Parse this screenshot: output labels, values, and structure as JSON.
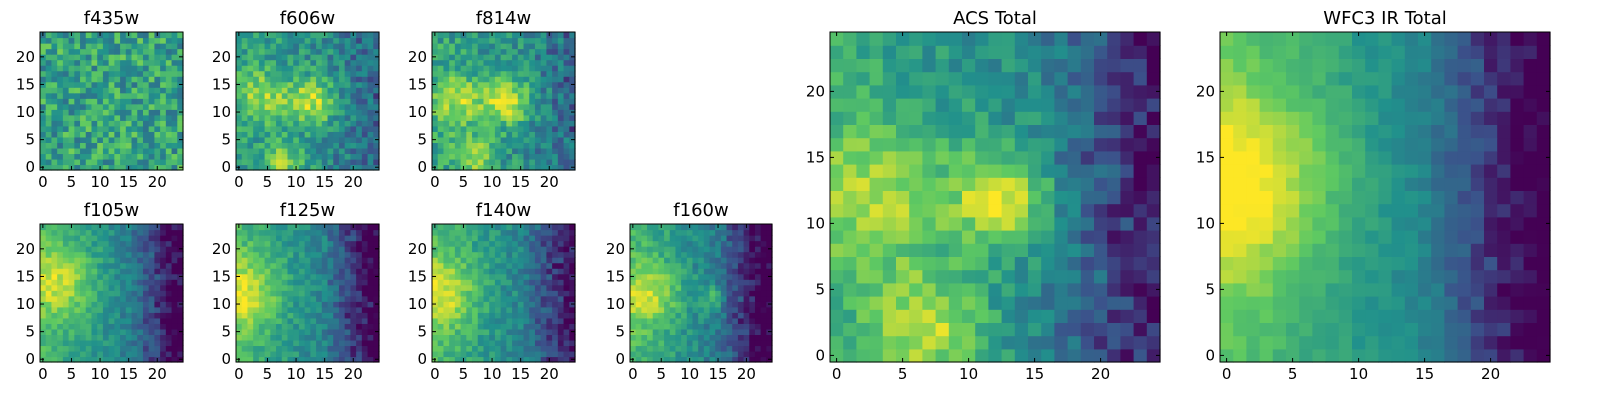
{
  "figure": {
    "colormap": [
      "#440154",
      "#3b528b",
      "#21918c",
      "#5ec962",
      "#fde725"
    ],
    "panels": [
      {
        "id": "f435w",
        "title": "f435w",
        "grid_size": 25,
        "xticks": [
          0,
          5,
          10,
          15,
          20
        ],
        "yticks": [
          0,
          5,
          10,
          15,
          20
        ],
        "features": {
          "base": 0.58,
          "gradient": 0.0,
          "noise": 0.42,
          "blobs": [],
          "dark_zone": 0.0,
          "seed": 11
        }
      },
      {
        "id": "f606w",
        "title": "f606w",
        "grid_size": 25,
        "xticks": [
          0,
          5,
          10,
          15,
          20
        ],
        "yticks": [
          0,
          5,
          10,
          15,
          20
        ],
        "features": {
          "base": 0.5,
          "gradient": 0.12,
          "noise": 0.3,
          "blobs": [
            [
              4,
              13,
              3.5,
              0.3
            ],
            [
              13,
              12,
              3,
              0.4
            ],
            [
              8,
              1,
              2.5,
              0.3
            ]
          ],
          "dark_zone": 0.12,
          "seed": 23
        }
      },
      {
        "id": "f814w",
        "title": "f814w",
        "grid_size": 25,
        "xticks": [
          0,
          5,
          10,
          15,
          20
        ],
        "yticks": [
          0,
          5,
          10,
          15,
          20
        ],
        "features": {
          "base": 0.52,
          "gradient": 0.12,
          "noise": 0.3,
          "blobs": [
            [
              4,
              12,
              3.5,
              0.3
            ],
            [
              13,
              12,
              3,
              0.4
            ],
            [
              7,
              2,
              2.5,
              0.3
            ]
          ],
          "dark_zone": 0.14,
          "seed": 37
        }
      },
      {
        "id": "acs_total",
        "title": "ACS Total",
        "grid_size": 25,
        "xticks": [
          0,
          5,
          10,
          15,
          20
        ],
        "yticks": [
          0,
          5,
          10,
          15,
          20
        ],
        "features": {
          "base": 0.5,
          "gradient": 0.2,
          "noise": 0.22,
          "blobs": [
            [
              3,
              12,
              4,
              0.3
            ],
            [
              12.5,
              12,
              2.5,
              0.45
            ],
            [
              7,
              2,
              3,
              0.35
            ]
          ],
          "dark_zone": 0.32,
          "seed": 41
        }
      },
      {
        "id": "wfc3_ir_total",
        "title": "WFC3 IR Total",
        "grid_size": 25,
        "xticks": [
          0,
          5,
          10,
          15,
          20
        ],
        "yticks": [
          0,
          5,
          10,
          15,
          20
        ],
        "features": {
          "base": 0.5,
          "gradient": 0.45,
          "noise": 0.1,
          "blobs": [
            [
              1,
              13,
              5,
              0.35
            ]
          ],
          "dark_zone": 0.35,
          "seed": 53
        }
      },
      {
        "id": "f105w",
        "title": "f105w",
        "grid_size": 25,
        "xticks": [
          0,
          5,
          10,
          15,
          20
        ],
        "yticks": [
          0,
          5,
          10,
          15,
          20
        ],
        "features": {
          "base": 0.48,
          "gradient": 0.38,
          "noise": 0.18,
          "blobs": [
            [
              3,
              14,
              4.5,
              0.3
            ]
          ],
          "dark_zone": 0.32,
          "seed": 61
        }
      },
      {
        "id": "f125w",
        "title": "f125w",
        "grid_size": 25,
        "xticks": [
          0,
          5,
          10,
          15,
          20
        ],
        "yticks": [
          0,
          5,
          10,
          15,
          20
        ],
        "features": {
          "base": 0.48,
          "gradient": 0.38,
          "noise": 0.2,
          "blobs": [
            [
              1,
              12,
              4.5,
              0.3
            ]
          ],
          "dark_zone": 0.35,
          "seed": 73
        }
      },
      {
        "id": "f140w",
        "title": "f140w",
        "grid_size": 25,
        "xticks": [
          0,
          5,
          10,
          15,
          20
        ],
        "yticks": [
          0,
          5,
          10,
          15,
          20
        ],
        "features": {
          "base": 0.5,
          "gradient": 0.36,
          "noise": 0.2,
          "blobs": [
            [
              1,
              12,
              4.5,
              0.3
            ]
          ],
          "dark_zone": 0.28,
          "seed": 89
        }
      },
      {
        "id": "f160w",
        "title": "f160w",
        "grid_size": 25,
        "xticks": [
          0,
          5,
          10,
          15,
          20
        ],
        "yticks": [
          0,
          5,
          10,
          15,
          20
        ],
        "features": {
          "base": 0.46,
          "gradient": 0.42,
          "noise": 0.2,
          "blobs": [
            [
              3,
              12,
              4,
              0.3
            ],
            [
              14,
              11,
              1.5,
              0.25
            ]
          ],
          "dark_zone": 0.38,
          "seed": 97
        }
      }
    ]
  },
  "chart_data": [
    {
      "type": "heatmap",
      "title": "f435w",
      "xlim": [
        0,
        25
      ],
      "ylim": [
        0,
        25
      ],
      "xticks": [
        0,
        5,
        10,
        15,
        20
      ],
      "yticks": [
        0,
        5,
        10,
        15,
        20
      ],
      "colormap": "viridis",
      "xlabel": "",
      "ylabel": ""
    },
    {
      "type": "heatmap",
      "title": "f606w",
      "xlim": [
        0,
        25
      ],
      "ylim": [
        0,
        25
      ],
      "xticks": [
        0,
        5,
        10,
        15,
        20
      ],
      "yticks": [
        0,
        5,
        10,
        15,
        20
      ],
      "colormap": "viridis",
      "xlabel": "",
      "ylabel": ""
    },
    {
      "type": "heatmap",
      "title": "f814w",
      "xlim": [
        0,
        25
      ],
      "ylim": [
        0,
        25
      ],
      "xticks": [
        0,
        5,
        10,
        15,
        20
      ],
      "yticks": [
        0,
        5,
        10,
        15,
        20
      ],
      "colormap": "viridis",
      "xlabel": "",
      "ylabel": ""
    },
    {
      "type": "heatmap",
      "title": "ACS Total",
      "xlim": [
        0,
        25
      ],
      "ylim": [
        0,
        25
      ],
      "xticks": [
        0,
        5,
        10,
        15,
        20
      ],
      "yticks": [
        0,
        5,
        10,
        15,
        20
      ],
      "colormap": "viridis",
      "xlabel": "",
      "ylabel": ""
    },
    {
      "type": "heatmap",
      "title": "WFC3 IR Total",
      "xlim": [
        0,
        25
      ],
      "ylim": [
        0,
        25
      ],
      "xticks": [
        0,
        5,
        10,
        15,
        20
      ],
      "yticks": [
        0,
        5,
        10,
        15,
        20
      ],
      "colormap": "viridis",
      "xlabel": "",
      "ylabel": ""
    },
    {
      "type": "heatmap",
      "title": "f105w",
      "xlim": [
        0,
        25
      ],
      "ylim": [
        0,
        25
      ],
      "xticks": [
        0,
        5,
        10,
        15,
        20
      ],
      "yticks": [
        0,
        5,
        10,
        15,
        20
      ],
      "colormap": "viridis",
      "xlabel": "",
      "ylabel": ""
    },
    {
      "type": "heatmap",
      "title": "f125w",
      "xlim": [
        0,
        25
      ],
      "ylim": [
        0,
        25
      ],
      "xticks": [
        0,
        5,
        10,
        15,
        20
      ],
      "yticks": [
        0,
        5,
        10,
        15,
        20
      ],
      "colormap": "viridis",
      "xlabel": "",
      "ylabel": ""
    },
    {
      "type": "heatmap",
      "title": "f140w",
      "xlim": [
        0,
        25
      ],
      "ylim": [
        0,
        25
      ],
      "xticks": [
        0,
        5,
        10,
        15,
        20
      ],
      "yticks": [
        0,
        5,
        10,
        15,
        20
      ],
      "colormap": "viridis",
      "xlabel": "",
      "ylabel": ""
    },
    {
      "type": "heatmap",
      "title": "f160w",
      "xlim": [
        0,
        25
      ],
      "ylim": [
        0,
        25
      ],
      "xticks": [
        0,
        5,
        10,
        15,
        20
      ],
      "yticks": [
        0,
        5,
        10,
        15,
        20
      ],
      "colormap": "viridis",
      "xlabel": "",
      "ylabel": ""
    }
  ]
}
